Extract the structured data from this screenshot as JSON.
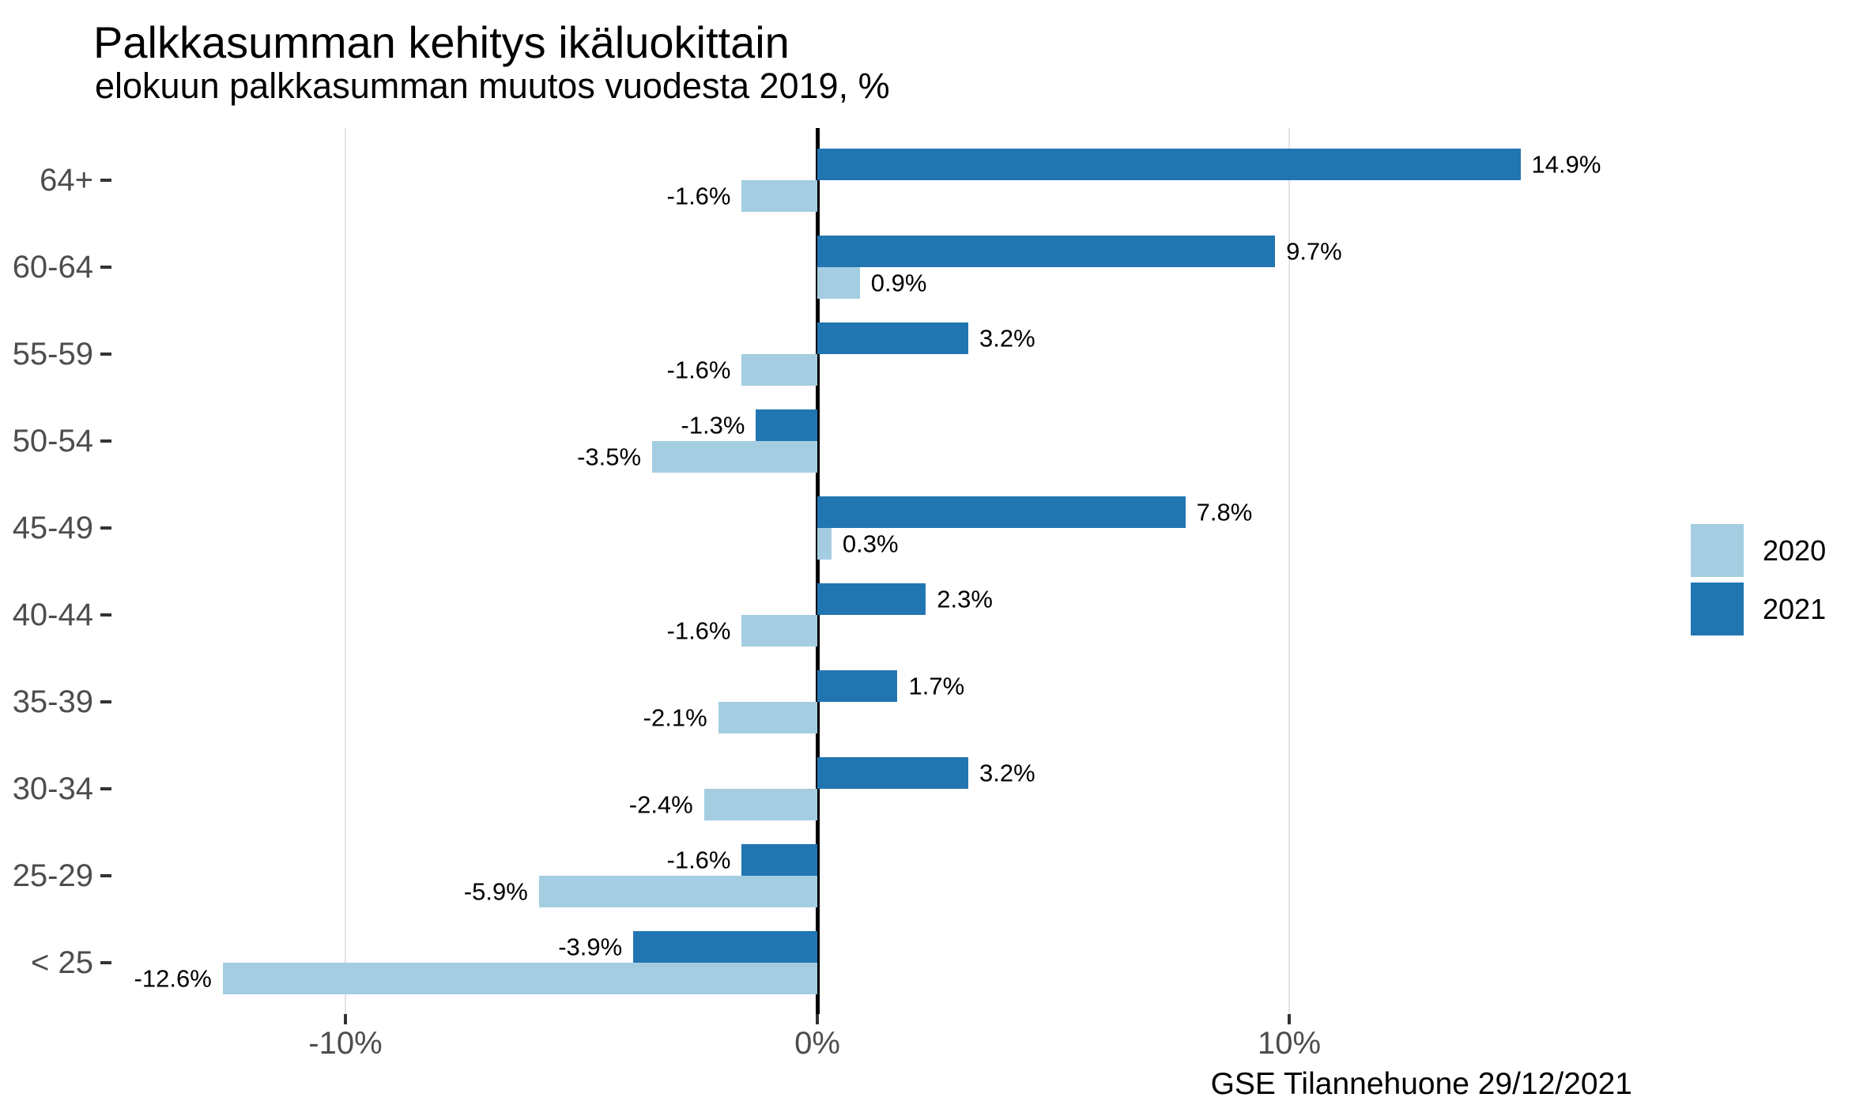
{
  "chart_data": {
    "type": "bar",
    "orientation": "horizontal",
    "title": "Palkkasumman kehitys ikäluokittain",
    "subtitle": "elokuun palkkasumman muutos vuodesta 2019, %",
    "categories": [
      "64+",
      "60-64",
      "55-59",
      "50-54",
      "45-49",
      "40-44",
      "35-39",
      "30-34",
      "25-29",
      "< 25"
    ],
    "series": [
      {
        "name": "2021",
        "color": "#2176B2",
        "values": [
          14.9,
          9.7,
          3.2,
          -1.3,
          7.8,
          2.3,
          1.7,
          3.2,
          -1.6,
          -3.9
        ],
        "labels": [
          "14.9%",
          "9.7%",
          "3.2%",
          "-1.3%",
          "7.8%",
          "2.3%",
          "1.7%",
          "3.2%",
          "-1.6%",
          "-3.9%"
        ]
      },
      {
        "name": "2020",
        "color": "#A5CDE2",
        "values": [
          -1.6,
          0.9,
          -1.6,
          -3.5,
          0.3,
          -1.6,
          -2.1,
          -2.4,
          -5.9,
          -12.6
        ],
        "labels": [
          "-1.6%",
          "0.9%",
          "-1.6%",
          "-3.5%",
          "0.3%",
          "-1.6%",
          "-2.1%",
          "-2.4%",
          "-5.9%",
          "-12.6%"
        ]
      }
    ],
    "x_ticks": [
      {
        "value": -10,
        "label": "-10%"
      },
      {
        "value": 0,
        "label": "0%"
      },
      {
        "value": 10,
        "label": "10%"
      }
    ],
    "xlim": [
      -14.7,
      18.6
    ],
    "grid": "vertical-major-only",
    "legend_position": "right",
    "value_suffix": "%"
  },
  "legend": {
    "items": [
      {
        "label": "2020",
        "color": "#A5CDE2"
      },
      {
        "label": "2021",
        "color": "#2176B2"
      }
    ]
  },
  "footer": {
    "text": "GSE Tilannehuone 29/12/2021"
  },
  "colors": {
    "bar_2020": "#A5CDE2",
    "bar_2021": "#2176B2",
    "axis_text": "#4D4D4D",
    "tick_mark": "#333333",
    "gridline": "#E4E4E4",
    "zero_line": "#000000",
    "value_label_text": "#000000"
  }
}
